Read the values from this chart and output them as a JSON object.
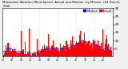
{
  "title": "Milwaukee Weather Wind Speed  Actual and Median  by Minute  (24 Hours) (Old)",
  "legend_actual": "Actual",
  "legend_median": "Median",
  "bar_color": "#ff0000",
  "line_color": "#0000ff",
  "background_color": "#f0f0f0",
  "plot_bg_color": "#ffffff",
  "n_points": 1440,
  "ylim": [
    0,
    30
  ],
  "yticks": [
    5,
    10,
    15,
    20,
    25,
    30
  ],
  "ylabel_fontsize": 3.0,
  "title_fontsize": 2.8,
  "legend_fontsize": 2.8,
  "seed": 42,
  "vline_color": "#aaaaaa",
  "vline_positions": [
    240,
    480,
    720,
    960,
    1200
  ]
}
